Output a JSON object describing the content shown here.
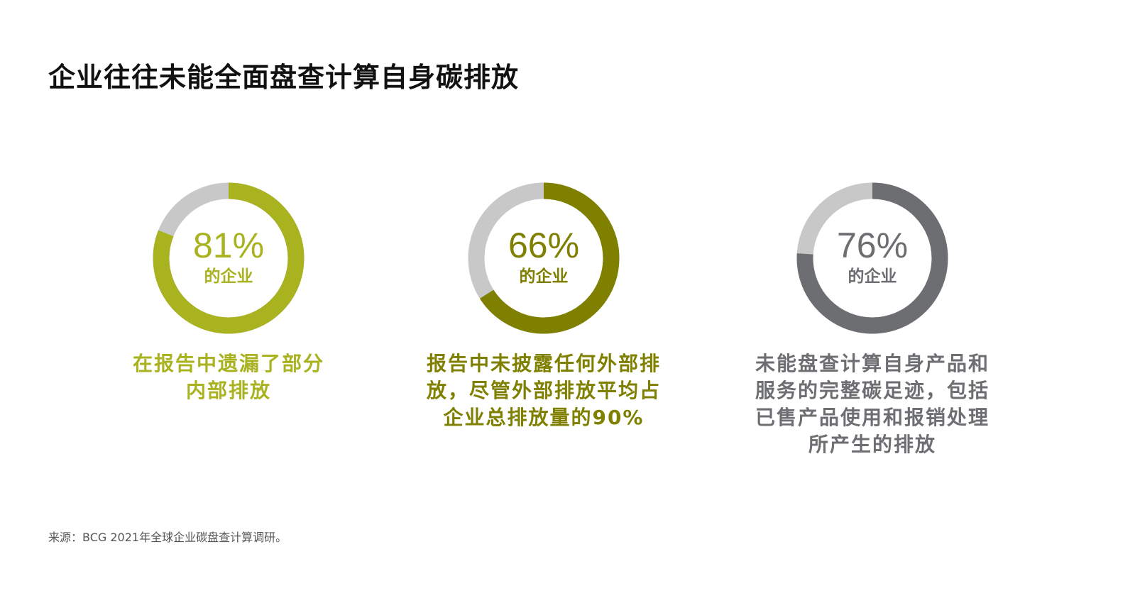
{
  "title": "企业往往未能全面盘查计算自身碳排放",
  "source": "来源：BCG 2021年全球企业碳盘查计算调研。",
  "track_color": "#c8c8c8",
  "chart_data": [
    {
      "type": "pie",
      "value": 81,
      "percent_label": "81%",
      "sub_label": "的企业",
      "description_lines": [
        "在报告中遗漏了部分",
        "内部排放"
      ],
      "color": "#a9b21f",
      "text_color": "#a9b21f"
    },
    {
      "type": "pie",
      "value": 66,
      "percent_label": "66%",
      "sub_label": "的企业",
      "description_lines": [
        "报告中未披露任何外部排",
        "放，尽管外部排放平均占",
        "企业总排放量的90%"
      ],
      "color": "#7f7f00",
      "text_color": "#7f7f00"
    },
    {
      "type": "pie",
      "value": 76,
      "percent_label": "76%",
      "sub_label": "的企业",
      "description_lines": [
        "未能盘查计算自身产品和",
        "服务的完整碳足迹，包括",
        "已售产品使用和报销处理",
        "所产生的排放"
      ],
      "color": "#6d6e71",
      "text_color": "#6d6e71"
    }
  ]
}
